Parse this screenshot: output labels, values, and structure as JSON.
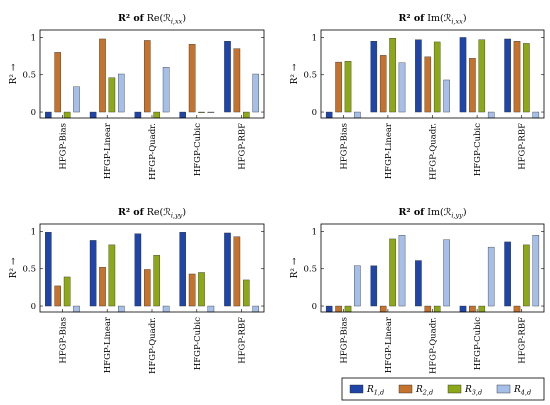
{
  "colors": [
    "#1f45a8",
    "#c4722c",
    "#8ca817",
    "#a6bfe8"
  ],
  "legend": [
    "R1,d",
    "R2,d",
    "R3,d",
    "R4,d"
  ],
  "chart_data": [
    {
      "type": "bar",
      "title": "R² of Re(ℛ_i,xx)",
      "ylabel": "R² →",
      "categories": [
        "HFGP-Bias",
        "HFGP-Linear",
        "HFGP-Quadr.",
        "HFGP-Cubic",
        "HFGP-RBF"
      ],
      "ylim": [
        -0.08,
        1.1
      ],
      "yticks": [
        "0",
        "0.5",
        "1"
      ],
      "series": [
        {
          "name": "R1,d",
          "values": [
            -0.08,
            -0.08,
            -0.08,
            -0.08,
            0.95
          ]
        },
        {
          "name": "R2,d",
          "values": [
            0.8,
            0.98,
            0.96,
            0.91,
            0.85
          ]
        },
        {
          "name": "R3,d",
          "values": [
            -0.08,
            0.46,
            -0.08,
            0.0,
            -0.08
          ]
        },
        {
          "name": "R4,d",
          "values": [
            0.34,
            0.51,
            0.6,
            0.0,
            0.51
          ]
        }
      ]
    },
    {
      "type": "bar",
      "title": "R² of Im(ℛ_i,xx)",
      "ylabel": "R² →",
      "categories": [
        "HFGP-Bias",
        "HFGP-Linear",
        "HFGP-Quadr.",
        "HFGP-Cubic",
        "HFGP-RBF"
      ],
      "ylim": [
        -0.08,
        1.1
      ],
      "yticks": [
        "0",
        "0.5",
        "1"
      ],
      "series": [
        {
          "name": "R1,d",
          "values": [
            -0.08,
            0.95,
            0.97,
            1.0,
            0.98
          ]
        },
        {
          "name": "R2,d",
          "values": [
            0.67,
            0.76,
            0.74,
            0.72,
            0.95
          ]
        },
        {
          "name": "R3,d",
          "values": [
            0.68,
            0.99,
            0.94,
            0.97,
            0.92
          ]
        },
        {
          "name": "R4,d",
          "values": [
            -0.08,
            0.66,
            0.43,
            -0.08,
            -0.08
          ]
        }
      ]
    },
    {
      "type": "bar",
      "title": "R² of Re(ℛ_i,yy)",
      "ylabel": "R² →",
      "categories": [
        "HFGP-Bias",
        "HFGP-Linear",
        "HFGP-Quadr.",
        "HFGP-Cubic",
        "HFGP-RBF"
      ],
      "ylim": [
        -0.08,
        1.1
      ],
      "yticks": [
        "0",
        "0.5",
        "1"
      ],
      "series": [
        {
          "name": "R1,d",
          "values": [
            0.99,
            0.88,
            0.97,
            0.99,
            0.98
          ]
        },
        {
          "name": "R2,d",
          "values": [
            0.27,
            0.52,
            0.49,
            0.43,
            0.93
          ]
        },
        {
          "name": "R3,d",
          "values": [
            0.39,
            0.82,
            0.68,
            0.45,
            0.35
          ]
        },
        {
          "name": "R4,d",
          "values": [
            -0.08,
            -0.08,
            -0.08,
            -0.08,
            -0.08
          ]
        }
      ]
    },
    {
      "type": "bar",
      "title": "R² of Im(ℛ_i,yy)",
      "ylabel": "R² →",
      "categories": [
        "HFGP-Bias",
        "HFGP-Linear",
        "HFGP-Quadr.",
        "HFGP-Cubic",
        "HFGP-RBF"
      ],
      "ylim": [
        -0.08,
        1.1
      ],
      "yticks": [
        "0",
        "0.5",
        "1"
      ],
      "series": [
        {
          "name": "R1,d",
          "values": [
            -0.08,
            0.54,
            0.61,
            -0.08,
            0.86
          ]
        },
        {
          "name": "R2,d",
          "values": [
            -0.08,
            -0.08,
            -0.08,
            -0.08,
            -0.08
          ]
        },
        {
          "name": "R3,d",
          "values": [
            -0.08,
            0.9,
            -0.08,
            -0.08,
            0.82
          ]
        },
        {
          "name": "R4,d",
          "values": [
            0.54,
            0.95,
            0.89,
            0.79,
            0.95
          ]
        }
      ]
    }
  ]
}
